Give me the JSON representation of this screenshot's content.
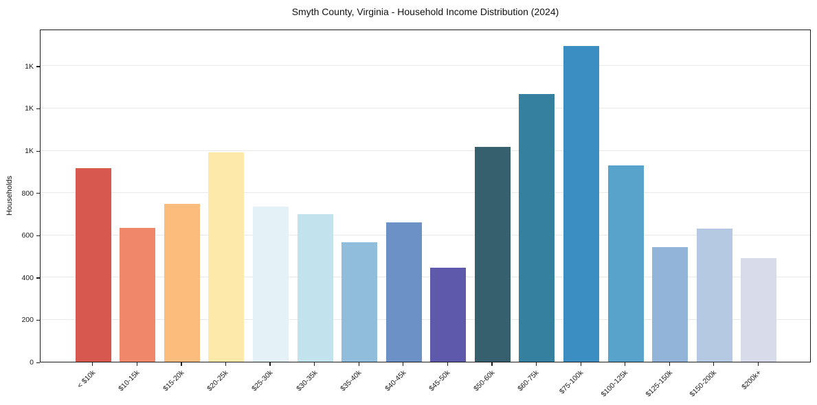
{
  "title": "Smyth County, Virginia - Household Income Distribution (2024)",
  "chart_data": {
    "type": "bar",
    "title": "Smyth County, Virginia - Household Income Distribution (2024)",
    "xlabel": "",
    "ylabel": "Households",
    "categories": [
      "< $10k",
      "$10-15k",
      "$15-20k",
      "$20-25k",
      "$25-30k",
      "$30-35k",
      "$35-40k",
      "$40-45k",
      "$45-50k",
      "$50-60k",
      "$60-75k",
      "$75-100k",
      "$100-125k",
      "$125-150k",
      "$150-200k",
      "$200k+"
    ],
    "values": [
      915,
      633,
      748,
      990,
      733,
      698,
      566,
      660,
      444,
      1018,
      1266,
      1494,
      928,
      541,
      630,
      490
    ],
    "bar_colors": [
      "#d6584f",
      "#f0876a",
      "#fbbc7c",
      "#fde9a9",
      "#e4f2f8",
      "#c2e2ee",
      "#90bddc",
      "#6b91c7",
      "#5e59aa",
      "#37606f",
      "#35809f",
      "#3a8ec2",
      "#58a3cb",
      "#92b4d8",
      "#b6c9e2",
      "#d8dcea"
    ],
    "ylim": [
      0,
      1575
    ],
    "yticks": [
      {
        "value": 0,
        "label": "0"
      },
      {
        "value": 200,
        "label": "200"
      },
      {
        "value": 400,
        "label": "400"
      },
      {
        "value": 600,
        "label": "600"
      },
      {
        "value": 800,
        "label": "800"
      },
      {
        "value": 1000,
        "label": "1K"
      },
      {
        "value": 1200,
        "label": "1K"
      },
      {
        "value": 1400,
        "label": "1K"
      }
    ],
    "gridline_values": [
      200,
      400,
      600,
      800,
      1000,
      1200,
      1400
    ],
    "grid": "horizontal",
    "x_tick_rotation": 45,
    "legend": "none",
    "background_color": "#ffffff",
    "frame_color": "#1a1a1a",
    "gridline_color": "#e9e9e9"
  }
}
